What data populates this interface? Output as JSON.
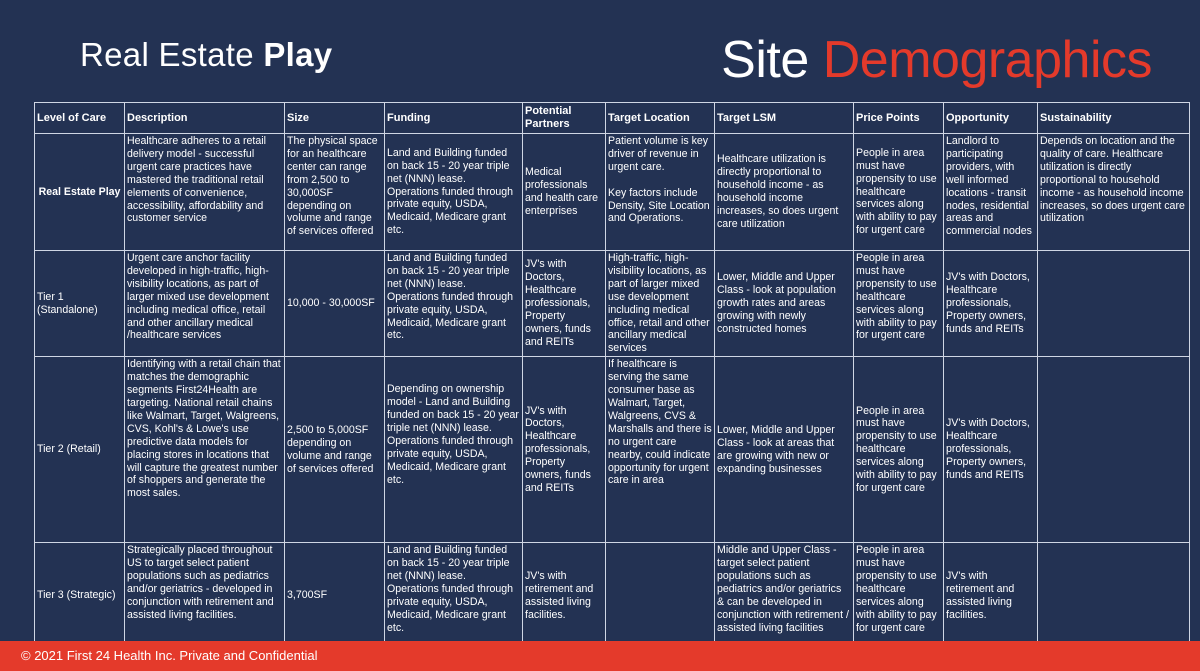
{
  "header": {
    "title_regular": "Real Estate ",
    "title_bold": "Play",
    "brand_white": "Site ",
    "brand_red": "Demographics"
  },
  "colors": {
    "background": "#233253",
    "accent_red": "#e43a2b",
    "grid_line": "#cfd6e4"
  },
  "table": {
    "columns": [
      "Level of Care",
      "Description",
      "Size",
      "Funding",
      "Potential Partners",
      "Target Location",
      "Target LSM",
      "Price Points",
      "Opportunity",
      "Sustainability"
    ],
    "rows": [
      {
        "level": "Real Estate Play",
        "description": "Healthcare adheres to a retail delivery model - successful urgent care practices have mastered the traditional retail elements of convenience, accessibility, affordability and customer service",
        "size": "The physical space for an healthcare center can range from 2,500 to 30,000SF depending on volume and range of services offered",
        "funding": "Land and Building funded on back 15 - 20 year triple net (NNN) lease. Operations funded through private equity, USDA, Medicaid, Medicare grant etc.",
        "partners": "Medical professionals and health care enterprises",
        "location": "Patient volume is key driver of revenue in urgent care.\n\nKey factors include Density, Site Location and Operations.",
        "lsm": "Healthcare utilization is directly proportional to household income - as household income increases, so does urgent care utilization",
        "price": "People in area must have propensity to use healthcare services along with ability to pay for urgent care",
        "opportunity": "Landlord to participating providers, with well informed locations - transit nodes, residential areas and commercial nodes",
        "sustainability": "Depends on location and the quality of care. Healthcare utilization is directly proportional to household income - as household income increases, so does urgent care utilization"
      },
      {
        "level": "Tier 1 (Standalone)",
        "description": "Urgent care anchor facility developed in high-traffic, high-visibility locations, as part of larger mixed use development including medical office, retail and other ancillary medical /healthcare services",
        "size": "10,000 - 30,000SF",
        "funding": "Land and Building funded on back 15 - 20 year triple net (NNN) lease. Operations funded through private equity, USDA, Medicaid, Medicare grant etc.",
        "partners": "JV's with Doctors, Healthcare professionals, Property owners, funds and REITs",
        "location": "High-traffic, high-visibility locations, as part of larger mixed use development including medical office, retail and other ancillary medical services",
        "lsm": "Lower, Middle and Upper Class - look at population growth rates and areas growing with newly constructed homes",
        "price": "People in area must have propensity to use healthcare services along with ability to pay for urgent care",
        "opportunity": "JV's with Doctors, Healthcare professionals, Property owners, funds and REITs",
        "sustainability": ""
      },
      {
        "level": "Tier 2 (Retail)",
        "description": "Identifying with a retail chain that matches the demographic segments First24Health are targeting. National retail chains like Walmart, Target, Walgreens, CVS, Kohl's & Lowe's use predictive data models for placing stores in locations that will capture the greatest number of shoppers and generate the most sales.",
        "size": "2,500 to 5,000SF depending on volume and range of services offered",
        "funding": "Depending on ownership model - Land and Building funded on back 15 - 20 year triple net (NNN) lease. Operations funded through private equity, USDA, Medicaid, Medicare grant etc.",
        "partners": "JV's with Doctors, Healthcare professionals, Property owners, funds and REITs",
        "location": "If healthcare is serving the same consumer base as Walmart, Target, Walgreens, CVS & Marshalls and there is no urgent care nearby, could indicate opportunity for urgent care in area",
        "lsm": "Lower, Middle and Upper Class - look at areas that are growing with new or expanding businesses",
        "price": "People in area must have propensity to use healthcare services along with ability to pay for urgent care",
        "opportunity": "JV's with Doctors, Healthcare professionals, Property owners, funds and REITs",
        "sustainability": ""
      },
      {
        "level": "Tier 3 (Strategic)",
        "description": "Strategically placed throughout US to target select patient populations such as pediatrics and/or geriatrics - developed in conjunction with retirement and assisted living facilities.",
        "size": "3,700SF",
        "funding": "Land and Building funded on back 15 - 20 year triple net (NNN) lease. Operations funded through private equity, USDA, Medicaid, Medicare grant etc.",
        "partners": "JV's with retirement and assisted living facilities.",
        "location": "",
        "lsm": "Middle and Upper Class - target select patient populations such as pediatrics and/or geriatrics & can be developed in conjunction with retirement / assisted living facilities",
        "price": "People in area must have propensity to use healthcare services along with ability to pay for urgent care",
        "opportunity": "JV's with retirement and assisted living facilities.",
        "sustainability": ""
      }
    ]
  },
  "footer": {
    "text": "© 2021  First 24 Health Inc. Private and Confidential"
  }
}
